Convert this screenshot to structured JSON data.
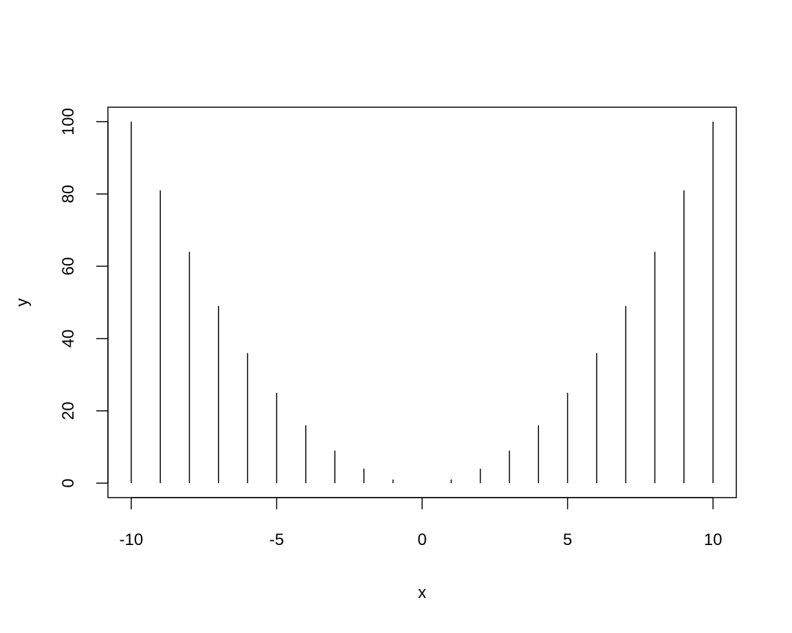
{
  "chart_data": {
    "type": "bar",
    "plot_style": "vertical lines (histogram-like spikes)",
    "title": "",
    "xlabel": "x",
    "ylabel": "y",
    "x": [
      -10,
      -9,
      -8,
      -7,
      -6,
      -5,
      -4,
      -3,
      -2,
      -1,
      0,
      1,
      2,
      3,
      4,
      5,
      6,
      7,
      8,
      9,
      10
    ],
    "y": [
      100,
      81,
      64,
      49,
      36,
      25,
      16,
      9,
      4,
      1,
      0,
      1,
      4,
      9,
      16,
      25,
      36,
      49,
      64,
      81,
      100
    ],
    "xlim": [
      -10.8,
      10.8
    ],
    "ylim": [
      -4,
      104
    ],
    "xticks": [
      -10,
      -5,
      0,
      5,
      10
    ],
    "xtick_labels": [
      "-10",
      "-5",
      "0",
      "5",
      "10"
    ],
    "yticks": [
      0,
      20,
      40,
      60,
      80,
      100
    ],
    "ytick_labels": [
      "0",
      "20",
      "40",
      "60",
      "80",
      "100"
    ],
    "grid": false,
    "legend": "none",
    "line_color": "#000000"
  }
}
